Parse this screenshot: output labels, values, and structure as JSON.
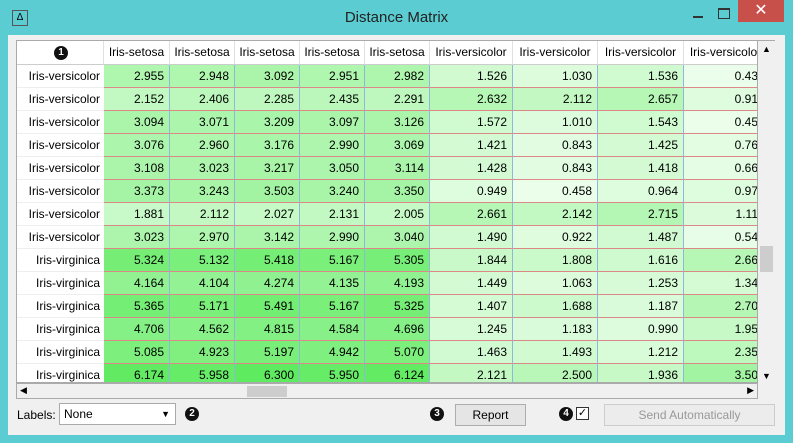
{
  "window": {
    "title": "Distance Matrix"
  },
  "table": {
    "corner_badge": "1",
    "columns": [
      "Iris-setosa",
      "Iris-setosa",
      "Iris-setosa",
      "Iris-setosa",
      "Iris-setosa",
      "Iris-versicolor",
      "Iris-versicolor",
      "Iris-versicolor",
      "Iris-versicolo"
    ],
    "rows": [
      {
        "label": "Iris-versicolor",
        "cells": [
          "2.955",
          "2.948",
          "3.092",
          "2.951",
          "2.982",
          "1.526",
          "1.030",
          "1.536",
          "0.43"
        ]
      },
      {
        "label": "Iris-versicolor",
        "cells": [
          "2.152",
          "2.406",
          "2.285",
          "2.435",
          "2.291",
          "2.632",
          "2.112",
          "2.657",
          "0.91"
        ]
      },
      {
        "label": "Iris-versicolor",
        "cells": [
          "3.094",
          "3.071",
          "3.209",
          "3.097",
          "3.126",
          "1.572",
          "1.010",
          "1.543",
          "0.45"
        ]
      },
      {
        "label": "Iris-versicolor",
        "cells": [
          "3.076",
          "2.960",
          "3.176",
          "2.990",
          "3.069",
          "1.421",
          "0.843",
          "1.425",
          "0.76"
        ]
      },
      {
        "label": "Iris-versicolor",
        "cells": [
          "3.108",
          "3.023",
          "3.217",
          "3.050",
          "3.114",
          "1.428",
          "0.843",
          "1.418",
          "0.66"
        ]
      },
      {
        "label": "Iris-versicolor",
        "cells": [
          "3.373",
          "3.243",
          "3.503",
          "3.240",
          "3.350",
          "0.949",
          "0.458",
          "0.964",
          "0.97"
        ]
      },
      {
        "label": "Iris-versicolor",
        "cells": [
          "1.881",
          "2.112",
          "2.027",
          "2.131",
          "2.005",
          "2.661",
          "2.142",
          "2.715",
          "1.11"
        ]
      },
      {
        "label": "Iris-versicolor",
        "cells": [
          "3.023",
          "2.970",
          "3.142",
          "2.990",
          "3.040",
          "1.490",
          "0.922",
          "1.487",
          "0.54"
        ]
      },
      {
        "label": "Iris-virginica",
        "cells": [
          "5.324",
          "5.132",
          "5.418",
          "5.167",
          "5.305",
          "1.844",
          "1.808",
          "1.616",
          "2.66"
        ]
      },
      {
        "label": "Iris-virginica",
        "cells": [
          "4.164",
          "4.104",
          "4.274",
          "4.135",
          "4.193",
          "1.449",
          "1.063",
          "1.253",
          "1.34"
        ]
      },
      {
        "label": "Iris-virginica",
        "cells": [
          "5.365",
          "5.171",
          "5.491",
          "5.167",
          "5.325",
          "1.407",
          "1.688",
          "1.187",
          "2.70"
        ]
      },
      {
        "label": "Iris-virginica",
        "cells": [
          "4.706",
          "4.562",
          "4.815",
          "4.584",
          "4.696",
          "1.245",
          "1.183",
          "0.990",
          "1.95"
        ]
      },
      {
        "label": "Iris-virginica",
        "cells": [
          "5.085",
          "4.923",
          "5.197",
          "4.942",
          "5.070",
          "1.463",
          "1.493",
          "1.212",
          "2.35"
        ]
      },
      {
        "label": "Iris-virginica",
        "cells": [
          "6.174",
          "5.958",
          "6.300",
          "5.950",
          "6.124",
          "2.121",
          "2.500",
          "1.936",
          "3.50"
        ]
      }
    ]
  },
  "controls": {
    "labels_label": "Labels:",
    "labels_value": "None",
    "labels_badge": "2",
    "report_badge": "3",
    "report": "Report",
    "auto_badge": "4",
    "send": "Send Automatically"
  }
}
